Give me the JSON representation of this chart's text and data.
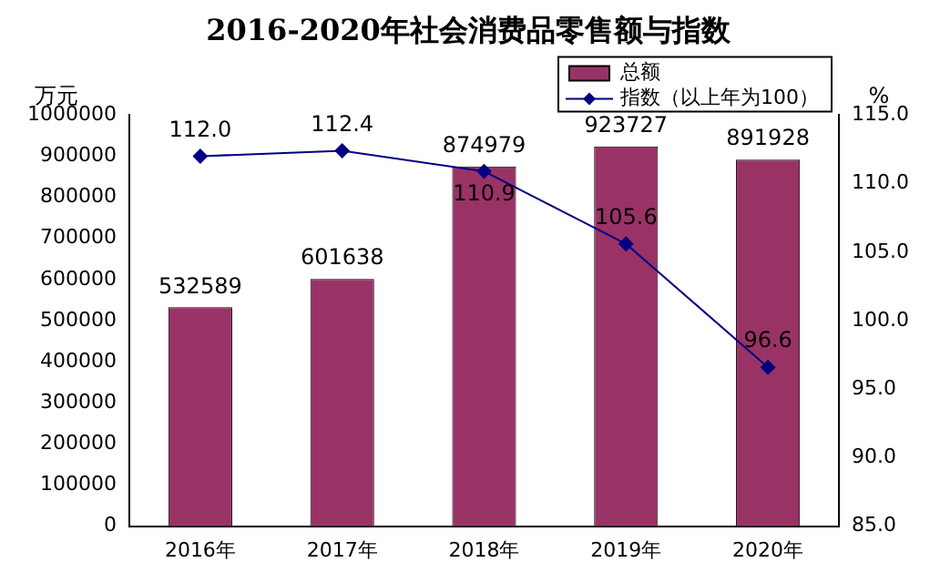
{
  "chart_data": {
    "type": "bar",
    "title": "2016-2020年社会消费品零售额与指数",
    "ylabel": "万元",
    "y2label": "%",
    "categories": [
      "2016年",
      "2017年",
      "2018年",
      "2019年",
      "2020年"
    ],
    "series": [
      {
        "name": "总额",
        "type": "bar",
        "color": "#993366",
        "values": [
          532589,
          601638,
          874979,
          923727,
          891928
        ],
        "value_labels": [
          "532589",
          "601638",
          "874979",
          "923727",
          "891928"
        ]
      },
      {
        "name": "指数（以上年为100）",
        "type": "line",
        "axis": "y2",
        "color": "#000080",
        "marker": "diamond",
        "values": [
          112.0,
          112.4,
          110.9,
          105.6,
          96.6
        ],
        "value_labels": [
          "112.0",
          "112.4",
          "110.9",
          "105.6",
          "96.6"
        ]
      }
    ],
    "ylim": [
      0,
      1000000
    ],
    "yticks": [
      0,
      100000,
      200000,
      300000,
      400000,
      500000,
      600000,
      700000,
      800000,
      900000,
      1000000
    ],
    "y2lim": [
      85,
      115
    ],
    "y2ticks": [
      {
        "value": 85,
        "label": "85.0"
      },
      {
        "value": 90,
        "label": "90.0"
      },
      {
        "value": 95,
        "label": "95.0"
      },
      {
        "value": 100,
        "label": "100.0"
      },
      {
        "value": 105,
        "label": "105.0"
      },
      {
        "value": 110,
        "label": "110.0"
      },
      {
        "value": 115,
        "label": "115.0"
      }
    ],
    "legend": "top right"
  }
}
